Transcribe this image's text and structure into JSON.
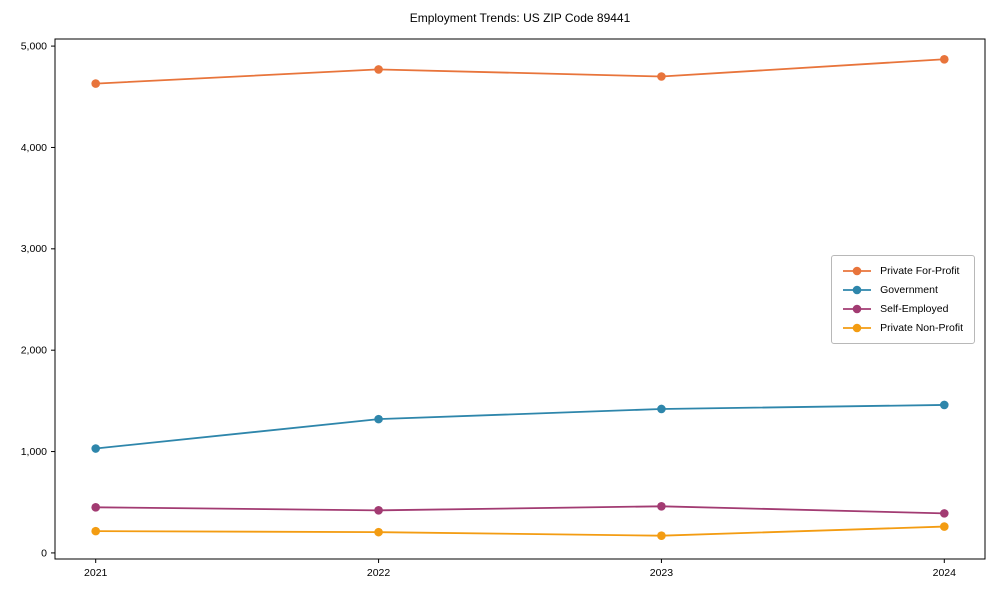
{
  "chart_data": {
    "type": "line",
    "title": "Employment Trends: US ZIP Code 89441",
    "x": [
      2021,
      2022,
      2023,
      2024
    ],
    "x_tick_labels": [
      "2021",
      "2022",
      "2023",
      "2024"
    ],
    "series": [
      {
        "name": "Private For-Profit",
        "color": "#E8743B",
        "values": [
          4630,
          4770,
          4700,
          4870
        ]
      },
      {
        "name": "Government",
        "color": "#2E86AB",
        "values": [
          1030,
          1320,
          1420,
          1460
        ]
      },
      {
        "name": "Self-Employed",
        "color": "#A23B72",
        "values": [
          450,
          420,
          460,
          390
        ]
      },
      {
        "name": "Private Non-Profit",
        "color": "#F39C12",
        "values": [
          215,
          205,
          170,
          260
        ]
      }
    ],
    "yticks": [
      0,
      1000,
      2000,
      3000,
      4000,
      5000
    ],
    "ytick_labels": [
      "0",
      "1,000",
      "2,000",
      "3,000",
      "4,000",
      "5,000"
    ],
    "ylim": [
      -60,
      5070
    ],
    "xlabel": "",
    "ylabel": "",
    "legend_position": "center right",
    "grid": false,
    "axis_color": "#000000",
    "background_color": "#ffffff"
  }
}
